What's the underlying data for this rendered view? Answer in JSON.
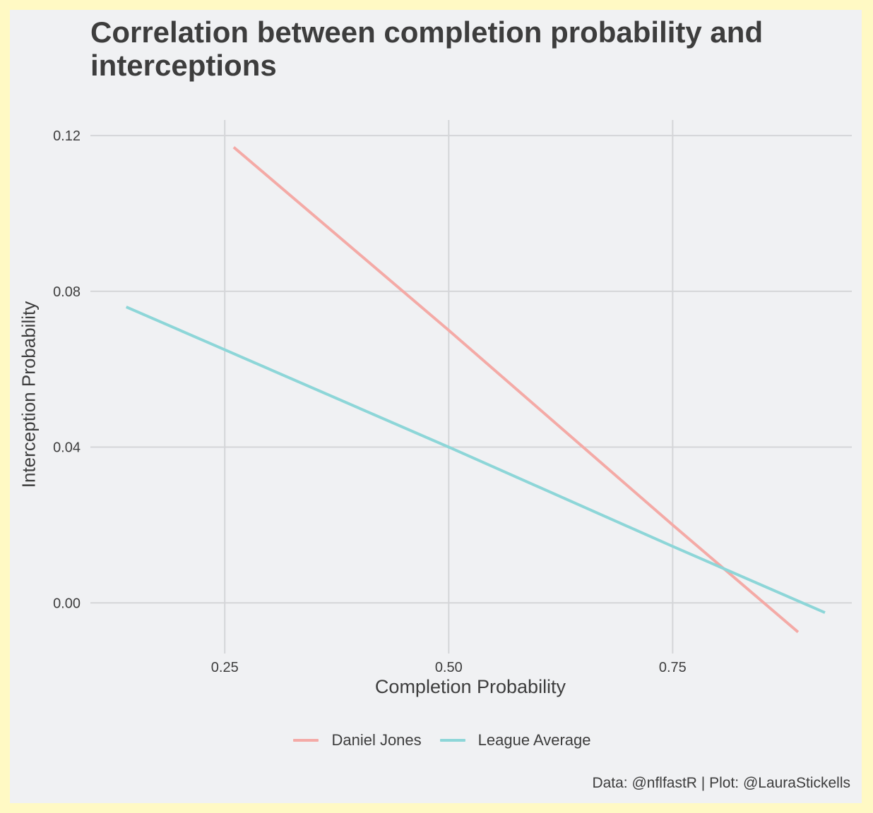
{
  "chart_data": {
    "type": "line",
    "title": "Correlation between completion probability and interceptions",
    "xlabel": "Completion Probability",
    "ylabel": "Interception Probability",
    "xlim": [
      0.1,
      0.95
    ],
    "ylim": [
      -0.013,
      0.124
    ],
    "x_ticks": [
      0.25,
      0.5,
      0.75
    ],
    "x_tick_labels": [
      "0.25",
      "0.50",
      "0.75"
    ],
    "y_ticks": [
      0.0,
      0.04,
      0.08,
      0.12
    ],
    "y_tick_labels": [
      "0.00",
      "0.04",
      "0.08",
      "0.12"
    ],
    "grid": true,
    "legend_position": "bottom",
    "series": [
      {
        "name": "Daniel Jones",
        "color": "#f4aaa6",
        "x": [
          0.26,
          0.5,
          0.75,
          0.89
        ],
        "y": [
          0.117,
          0.07,
          0.02,
          -0.0075
        ]
      },
      {
        "name": "League Average",
        "color": "#8dd6d8",
        "x": [
          0.14,
          0.25,
          0.5,
          0.75,
          0.92
        ],
        "y": [
          0.076,
          0.065,
          0.04,
          0.0145,
          -0.0025
        ]
      }
    ],
    "caption": "Data: @nflfastR | Plot: @LauraStickells"
  },
  "colors": {
    "page_border": "#fff9c4",
    "panel_background": "#f0f1f3",
    "grid": "#d4d5d8",
    "text": "#3d3d3d"
  }
}
